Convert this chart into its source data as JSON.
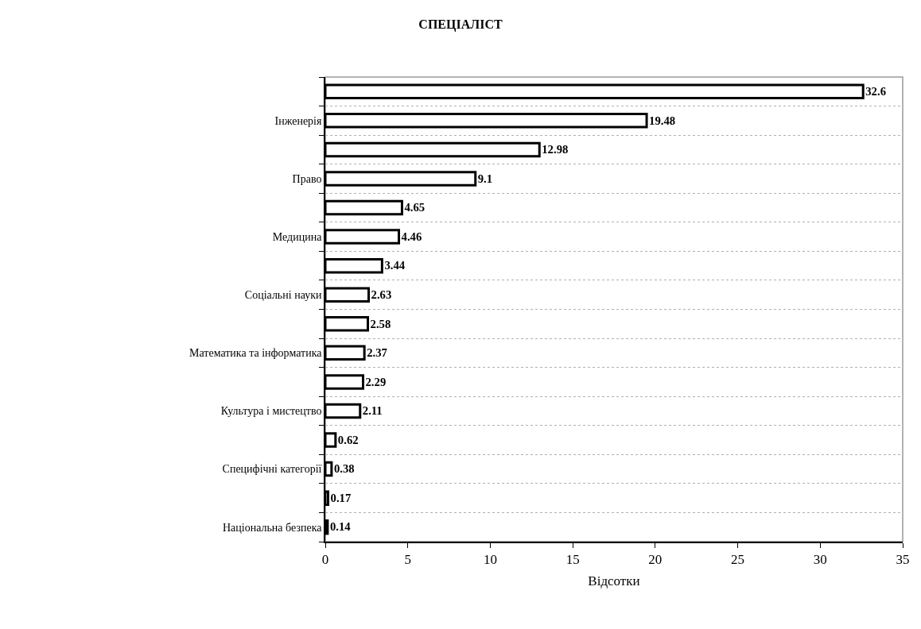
{
  "chart_data": {
    "type": "bar",
    "orientation": "horizontal",
    "title": "СПЕЦІАЛІСТ",
    "xlabel": "Відсотки",
    "categories": [
      null,
      "Інженерія",
      null,
      "Право",
      null,
      "Медицина",
      null,
      "Соціальні науки",
      null,
      "Математика та інформатика",
      null,
      "Культура і мистецтво",
      null,
      "Специфічні категорії",
      null,
      "Національна безпека"
    ],
    "values": [
      32.6,
      19.48,
      12.98,
      9.1,
      4.65,
      4.46,
      3.44,
      2.63,
      2.58,
      2.37,
      2.29,
      2.11,
      0.62,
      0.38,
      0.17,
      0.14
    ],
    "color": "#ffffff",
    "xlim": [
      0,
      35
    ],
    "xticks": [
      0,
      5,
      10,
      15,
      20,
      25,
      30,
      35
    ],
    "grid": "y",
    "data_labels": true
  }
}
